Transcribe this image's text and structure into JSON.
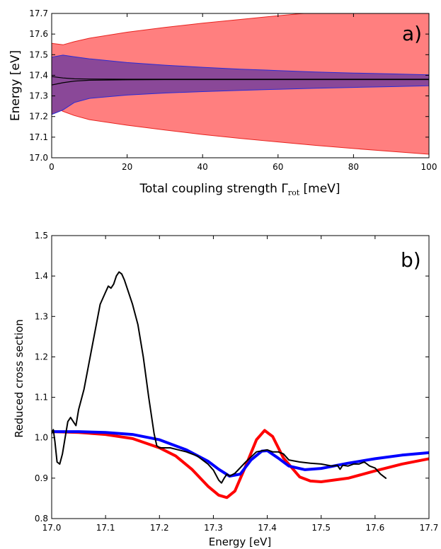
{
  "chart_data": [
    {
      "panel_label": "a)",
      "type": "area",
      "xlabel": "Total coupling strength Γ",
      "xlabel_sub": "rot",
      "xlabel_unit": " [meV]",
      "ylabel": "Energy [eV]",
      "xlim": [
        0,
        100
      ],
      "ylim": [
        17.0,
        17.7
      ],
      "xticks": [
        "0",
        "20",
        "40",
        "60",
        "80",
        "100"
      ],
      "yticks": [
        "17.0",
        "17.1",
        "17.2",
        "17.3",
        "17.4",
        "17.5",
        "17.6",
        "17.7"
      ],
      "series": [
        {
          "color": "#ff7f7f",
          "edge": "#e8231f",
          "x": [
            0,
            3,
            6,
            10,
            20,
            30,
            40,
            50,
            60,
            70,
            80,
            90,
            100
          ],
          "upper": [
            17.555,
            17.548,
            17.563,
            17.58,
            17.609,
            17.632,
            17.653,
            17.671,
            17.689,
            17.705,
            17.718,
            17.73,
            17.742
          ],
          "lower": [
            17.255,
            17.225,
            17.205,
            17.185,
            17.158,
            17.135,
            17.113,
            17.094,
            17.077,
            17.06,
            17.045,
            17.031,
            17.017
          ]
        },
        {
          "color": "#8a4898",
          "edge": "#2a2bd4",
          "x": [
            0,
            3,
            6,
            10,
            20,
            30,
            40,
            50,
            60,
            70,
            80,
            90,
            100
          ],
          "upper": [
            17.488,
            17.498,
            17.49,
            17.48,
            17.462,
            17.449,
            17.439,
            17.43,
            17.423,
            17.416,
            17.411,
            17.407,
            17.402
          ],
          "lower": [
            17.21,
            17.232,
            17.268,
            17.288,
            17.304,
            17.314,
            17.321,
            17.327,
            17.332,
            17.337,
            17.341,
            17.345,
            17.349
          ]
        },
        {
          "color": "#000000",
          "x": [
            0,
            3,
            6,
            10,
            20,
            30,
            40,
            50,
            60,
            70,
            80,
            90,
            100
          ],
          "upper": [
            17.394,
            17.387,
            17.383,
            17.382,
            17.381,
            17.381,
            17.381,
            17.381,
            17.381,
            17.381,
            17.381,
            17.381,
            17.381
          ],
          "lower": [
            17.353,
            17.364,
            17.372,
            17.376,
            17.378,
            17.379,
            17.379,
            17.379,
            17.379,
            17.379,
            17.379,
            17.379,
            17.379
          ]
        }
      ]
    },
    {
      "panel_label": "b)",
      "type": "line",
      "xlabel": "Energy [eV]",
      "ylabel": "Reduced cross section",
      "xlim": [
        17.0,
        17.7
      ],
      "ylim": [
        0.8,
        1.5
      ],
      "xticks": [
        "17.0",
        "17.1",
        "17.2",
        "17.3",
        "17.4",
        "17.5",
        "17.6",
        "17.7"
      ],
      "yticks": [
        "0.8",
        "0.9",
        "1.0",
        "1.1",
        "1.2",
        "1.3",
        "1.4",
        "1.5"
      ],
      "series": [
        {
          "color": "#ff0000",
          "x": [
            17.0,
            17.05,
            17.1,
            17.15,
            17.2,
            17.23,
            17.26,
            17.29,
            17.31,
            17.325,
            17.34,
            17.36,
            17.38,
            17.395,
            17.41,
            17.43,
            17.46,
            17.48,
            17.5,
            17.55,
            17.6,
            17.65,
            17.7
          ],
          "y": [
            1.015,
            1.013,
            1.008,
            0.998,
            0.975,
            0.955,
            0.922,
            0.88,
            0.858,
            0.852,
            0.868,
            0.93,
            0.995,
            1.018,
            1.003,
            0.95,
            0.903,
            0.893,
            0.891,
            0.9,
            0.918,
            0.935,
            0.948
          ]
        },
        {
          "color": "#0000ff",
          "x": [
            17.0,
            17.05,
            17.1,
            17.15,
            17.2,
            17.25,
            17.29,
            17.31,
            17.33,
            17.35,
            17.37,
            17.39,
            17.4,
            17.42,
            17.44,
            17.47,
            17.5,
            17.55,
            17.6,
            17.65,
            17.7
          ],
          "y": [
            1.015,
            1.015,
            1.013,
            1.008,
            0.995,
            0.97,
            0.942,
            0.922,
            0.905,
            0.91,
            0.945,
            0.967,
            0.968,
            0.95,
            0.93,
            0.921,
            0.924,
            0.937,
            0.948,
            0.957,
            0.963
          ]
        },
        {
          "color": "#000000",
          "x": [
            17.0,
            17.003,
            17.006,
            17.01,
            17.015,
            17.02,
            17.025,
            17.03,
            17.035,
            17.04,
            17.045,
            17.05,
            17.06,
            17.07,
            17.08,
            17.09,
            17.1,
            17.105,
            17.11,
            17.115,
            17.12,
            17.125,
            17.13,
            17.135,
            17.14,
            17.15,
            17.16,
            17.17,
            17.18,
            17.19,
            17.195,
            17.2,
            17.22,
            17.25,
            17.27,
            17.29,
            17.3,
            17.31,
            17.315,
            17.32,
            17.325,
            17.33,
            17.34,
            17.36,
            17.38,
            17.4,
            17.41,
            17.42,
            17.43,
            17.44,
            17.46,
            17.48,
            17.5,
            17.52,
            17.53,
            17.535,
            17.54,
            17.55,
            17.56,
            17.57,
            17.58,
            17.59,
            17.6,
            17.61,
            17.62
          ],
          "y": [
            1.01,
            1.02,
            0.99,
            0.94,
            0.935,
            0.96,
            1.0,
            1.04,
            1.05,
            1.04,
            1.03,
            1.07,
            1.12,
            1.19,
            1.26,
            1.33,
            1.36,
            1.375,
            1.37,
            1.38,
            1.4,
            1.41,
            1.405,
            1.39,
            1.37,
            1.33,
            1.28,
            1.2,
            1.1,
            1.01,
            0.98,
            0.975,
            0.975,
            0.965,
            0.955,
            0.935,
            0.92,
            0.895,
            0.888,
            0.9,
            0.91,
            0.905,
            0.912,
            0.94,
            0.965,
            0.97,
            0.965,
            0.965,
            0.96,
            0.945,
            0.94,
            0.937,
            0.935,
            0.93,
            0.932,
            0.922,
            0.932,
            0.93,
            0.935,
            0.935,
            0.94,
            0.93,
            0.925,
            0.91,
            0.9
          ]
        }
      ]
    }
  ]
}
